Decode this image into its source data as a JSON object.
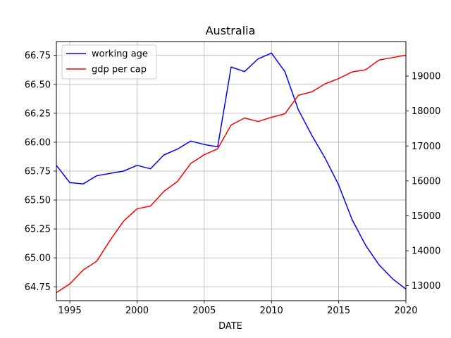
{
  "chart_data": {
    "type": "line",
    "title": "Australia",
    "xlabel": "DATE",
    "ylabel_left": "",
    "ylabel_right": "",
    "xlim": [
      1994,
      2020
    ],
    "ylim_left": [
      64.63,
      66.87
    ],
    "ylim_right": [
      12570,
      19990
    ],
    "grid": true,
    "legend_position": "upper-left",
    "x_ticks": [
      1995,
      2000,
      2005,
      2010,
      2015,
      2020
    ],
    "y_left_ticks": [
      "64.75",
      "65.00",
      "65.25",
      "65.50",
      "65.75",
      "66.00",
      "66.25",
      "66.50",
      "66.75"
    ],
    "y_right_ticks": [
      "13000",
      "14000",
      "15000",
      "16000",
      "17000",
      "18000",
      "19000"
    ],
    "x": [
      1994,
      1995,
      1996,
      1997,
      1998,
      1999,
      2000,
      2001,
      2002,
      2003,
      2004,
      2005,
      2006,
      2007,
      2008,
      2009,
      2010,
      2011,
      2012,
      2013,
      2014,
      2015,
      2016,
      2017,
      2018,
      2019,
      2020
    ],
    "series": [
      {
        "name": "working age",
        "axis": "left",
        "color": "#0000ff",
        "values": [
          65.8,
          65.65,
          65.64,
          65.71,
          65.73,
          65.75,
          65.8,
          65.77,
          65.89,
          65.94,
          66.01,
          65.98,
          65.96,
          66.65,
          66.61,
          66.72,
          66.77,
          66.61,
          66.28,
          66.06,
          65.86,
          65.63,
          65.33,
          65.11,
          64.94,
          64.82,
          64.73
        ]
      },
      {
        "name": "gdp per cap",
        "axis": "right",
        "color": "#ff0000",
        "values": [
          12800,
          13050,
          13450,
          13700,
          14300,
          14850,
          15200,
          15280,
          15700,
          15980,
          16500,
          16750,
          16920,
          17600,
          17800,
          17700,
          17820,
          17920,
          18450,
          18550,
          18780,
          18930,
          19120,
          19180,
          19460,
          19530,
          19600
        ]
      }
    ]
  }
}
